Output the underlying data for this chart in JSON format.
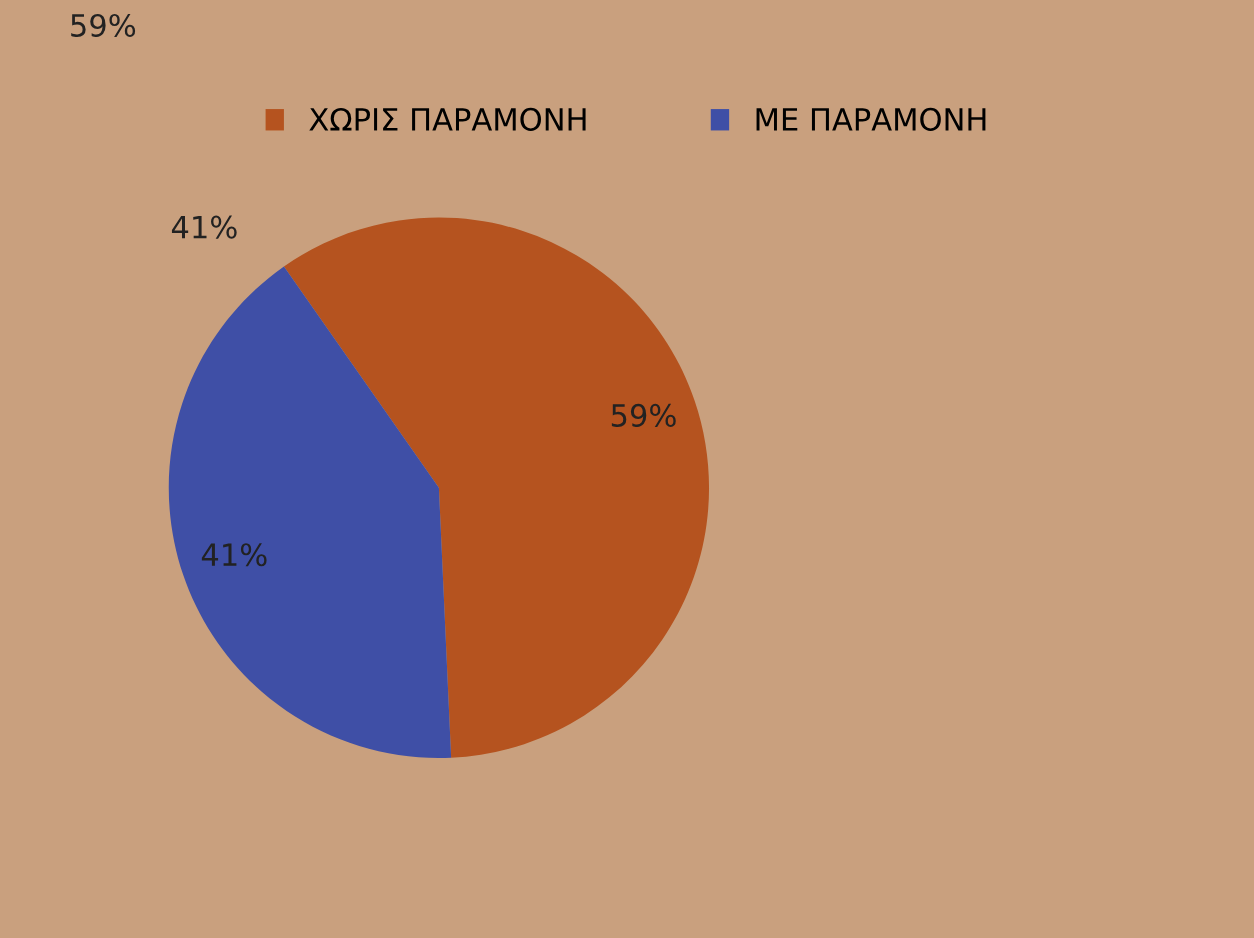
{
  "chart_data": {
    "type": "pie",
    "categories": [
      "ΧΩΡΙΣ ΠΑΡΑΜΟΝΗ",
      "ΜΕ ΠΑΡΑΜΟΝΗ"
    ],
    "values": [
      59,
      41
    ],
    "colors": [
      "#b5531f",
      "#3f4fa6"
    ],
    "value_labels": [
      "59%",
      "41%"
    ],
    "legend": "top",
    "annotations": [
      "59%",
      "41%"
    ]
  }
}
